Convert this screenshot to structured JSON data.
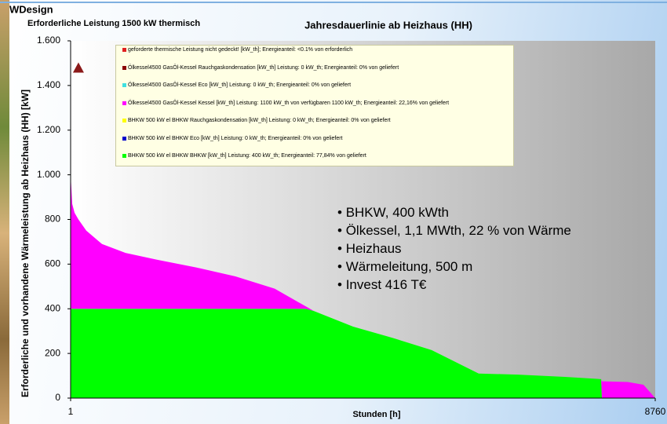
{
  "brand": "WDesign",
  "chart_data": {
    "type": "area",
    "stacked": true,
    "title": "Jahresdauerlinie ab Heizhaus (HH)",
    "subtitle": "Erforderliche Leistung 1500 kW thermisch",
    "x_label": "Stunden [h]",
    "y_label": "Erforderliche und vorhandene Wärmeleistung ab Heizhaus (HH) [kW]",
    "x": [
      1,
      25,
      60,
      118,
      236,
      471,
      824,
      1294,
      1882,
      2470,
      3058,
      3528,
      3646,
      4234,
      4822,
      5410,
      6115,
      6703,
      7409,
      7950,
      7961,
      8349,
      8584,
      8760
    ],
    "xlim": [
      1,
      8760
    ],
    "xticks": [
      1,
      8760
    ],
    "ylim": [
      0,
      1600
    ],
    "yticks": [
      0,
      200,
      400,
      600,
      800,
      {
        "value": 1000,
        "label": "1.000"
      },
      {
        "value": 1200,
        "label": "1.200"
      },
      {
        "value": 1400,
        "label": "1.400"
      },
      {
        "value": 1600,
        "label": "1.600"
      }
    ],
    "series": [
      {
        "name": "geforderte thermische Leistung nicht gedeckt! [kW_th]; Energieanteil: <0.1%  von erforderlich",
        "color": "#e02020"
      },
      {
        "name": "Ölkessel4500 GasÖl-Kessel Rauchgaskondensation [kW_th] Leistung: 0 kW_th; Energieanteil: 0% von geliefert",
        "color": "#8b0000"
      },
      {
        "name": "Ölkessel4500 GasÖl-Kessel Eco [kW_th] Leistung: 0 kW_th; Energieanteil: 0% von geliefert",
        "color": "#40e0e0"
      },
      {
        "name": "Ölkessel4500 GasÖl-Kessel Kessel [kW_th] Leistung: 1100 kW_th von verfügbaren 1100 kW_th; Energieanteil: 22,16% von geliefert",
        "color": "#ff00ff",
        "values": [
          600,
          470,
          430,
          400,
          350,
          290,
          250,
          220,
          185,
          145,
          90,
          10,
          0,
          0,
          0,
          0,
          0,
          0,
          0,
          0,
          75,
          72,
          60,
          0
        ]
      },
      {
        "name": "BHKW 500 kW el BHKW Rauchgaskondensation [kW_th] Leistung: 0 kW_th; Energieanteil: 0% von geliefert",
        "color": "#ffff00"
      },
      {
        "name": "BHKW 500 kW el BHKW Eco [kW_th] Leistung: 0 kW_th; Energieanteil: 0% von geliefert",
        "color": "#0000cc"
      },
      {
        "name": "BHKW 500 kW el BHKW BHKW [kW_th] Leistung: 400 kW_th; Energieanteil: 77,84% von geliefert",
        "color": "#00ff00",
        "values": [
          400,
          400,
          400,
          400,
          400,
          400,
          400,
          400,
          400,
          400,
          400,
          400,
          390,
          320,
          270,
          215,
          110,
          105,
          95,
          85,
          0,
          0,
          0,
          0
        ]
      }
    ],
    "stack_order": [
      6,
      3
    ],
    "marker": {
      "x": 118,
      "y": 1475,
      "color": "#8b1a1a"
    },
    "annotations": [
      "BHKW, 400 kWth",
      "Ölkessel, 1,1 MWth, 22 % von Wärme",
      "Heizhaus",
      "Wärmeleitung, 500 m",
      "Invest 416 T€"
    ]
  }
}
